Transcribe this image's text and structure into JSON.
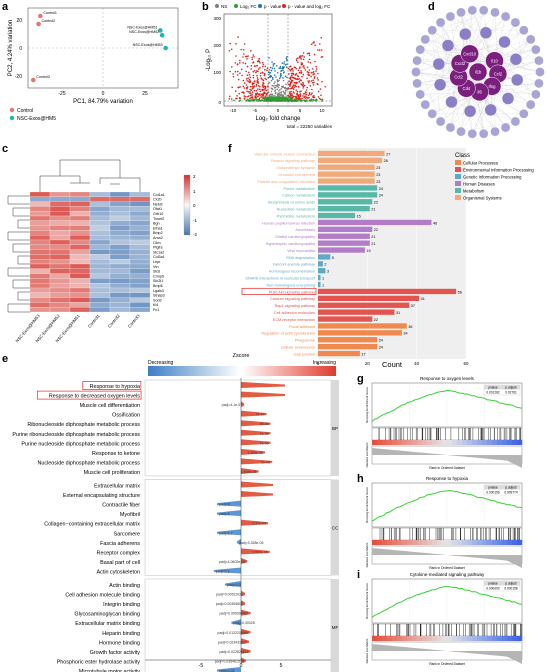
{
  "panels": {
    "a": {
      "letter": "a",
      "xlabel": "PC1, 84.79% variation",
      "ylabel": "PC2, 4.24% variation",
      "xticks": [
        "-25",
        "0",
        "25"
      ],
      "yticks": [
        "20",
        "0",
        "-20"
      ],
      "legend": [
        {
          "label": "Control",
          "color": "#e8776f"
        },
        {
          "label": "NSC-Exos@HM5",
          "color": "#1fb8b0"
        }
      ]
    },
    "b": {
      "letter": "b",
      "legend": [
        "NS",
        "Log₂ FC",
        "p - value",
        "p - value and log₂ FC"
      ],
      "legend_colors": [
        "#7f7f7f",
        "#2ca02c",
        "#1f77b4",
        "#e4201b"
      ],
      "xlabel": "Log₂ fold change",
      "ylabel": "-Log₁₀ P",
      "xticks": [
        "-10",
        "-5",
        "0",
        "5",
        "10"
      ],
      "yticks": [
        "300",
        "200",
        "100",
        "0"
      ],
      "footer": "total = 22250 variables"
    },
    "c": {
      "letter": "c",
      "genes": [
        "Col1a1",
        "Cx2b",
        "Nebl2",
        "Ofat1",
        "Grb10",
        "Tnsef2",
        "Bgn",
        "Efna1",
        "Bmp2",
        "Arxa2",
        "Ckm",
        "Ptgfrs",
        "Slc1a2",
        "Col3a1",
        "Lepr",
        "Vtn",
        "Slc6",
        "Crmp5",
        "Slc2t1",
        "Bmp6",
        "Lgals3",
        "Stnap3",
        "Sod3",
        "Kl4",
        "Fn1"
      ],
      "samples": [
        "NSC-Exos@HM5",
        "NSC-Exos@HM5",
        "NSC-Exos@HM5",
        "Control",
        "Control",
        "Control"
      ],
      "scale": [
        "2",
        "1",
        "0",
        "-1",
        "-2"
      ]
    },
    "d": {
      "letter": "d",
      "hubs": [
        "Il1b",
        "Il10",
        "Ccl2",
        "Ifng",
        "Il6",
        "Cd4",
        "Ccl2",
        "Cxcl2",
        "Cxcl10"
      ]
    },
    "f": {
      "letter": "f",
      "xlabel": "Count",
      "xticks": [
        "0",
        "20",
        "40",
        "60"
      ],
      "legend_title": "Class",
      "classes": [
        {
          "label": "Cellular Processes",
          "color": "#f0894f"
        },
        {
          "label": "Environmental Information Processing",
          "color": "#e3534f"
        },
        {
          "label": "Genetic Information Processing",
          "color": "#5ea8c9"
        },
        {
          "label": "Human Diseases",
          "color": "#b27cc8"
        },
        {
          "label": "Metabolism",
          "color": "#59b7a8"
        },
        {
          "label": "Organismal Systems",
          "color": "#f2a97a"
        }
      ],
      "highlight": "PI3K-Akt signaling pathway"
    },
    "e": {
      "letter": "e",
      "title": "Zscore",
      "decreasing": "Decreasing",
      "increasing": "Increasing",
      "xticks": [
        "-5",
        "0",
        "5"
      ],
      "groups": [
        "BP",
        "CC",
        "MF"
      ]
    },
    "g": {
      "letter": "g",
      "title": "Response to oxygen levels",
      "cols": [
        "pvalue",
        "p.adjust"
      ],
      "vals": [
        "0.001282",
        "0.02761"
      ]
    },
    "h": {
      "letter": "h",
      "title": "Response to hypoxia",
      "cols": [
        "pvalue",
        "p.adjust"
      ],
      "vals": [
        "0.000156",
        "0.009774"
      ]
    },
    "i": {
      "letter": "i",
      "title": "Cytokine-mediated signaling pathway",
      "cols": [
        "pvalue",
        "p.adjust"
      ],
      "vals": [
        "0.000000",
        "0.000158"
      ]
    },
    "gsea_ylabel_top": "Running Enrichment Score",
    "gsea_ylabel_bottom": "Ranked List Metric",
    "gsea_xlabel": "Rank in Ordered Dataset"
  },
  "chart_data": [
    {
      "type": "scatter",
      "panel": "a",
      "xlabel": "PC1, 84.79% variation",
      "ylabel": "PC2, 4.24% variation",
      "xlim": [
        -40,
        45
      ],
      "ylim": [
        -25,
        25
      ],
      "series": [
        {
          "name": "Control",
          "points": [
            [
              -33,
              20
            ],
            [
              -34,
              15
            ],
            [
              -37,
              -20
            ]
          ],
          "labels": [
            "Control1",
            "Control2",
            "Control3"
          ]
        },
        {
          "name": "NSC-Exos@HM5",
          "points": [
            [
              35,
              11
            ],
            [
              36,
              8
            ],
            [
              38,
              0
            ]
          ],
          "labels": [
            "NSC-Exos@HM51",
            "NSC-Exos@HM52",
            "NSC-Exos@HM53"
          ]
        }
      ]
    },
    {
      "type": "bar",
      "panel": "f",
      "xlabel": "Count",
      "categories": [
        "Vascular smooth muscle contraction",
        "Relaxin signaling pathway",
        "Glutamatergic synapse",
        "Circadian entrainment",
        "Platelet and coagulation cascades",
        "Purine metabolism",
        "Carbon metabolism",
        "Biosynthesis of amino acids",
        "Nucleotide metabolism",
        "Pyrimidine metabolism",
        "Human papillomavirus infection",
        "Amoebiasis",
        "Dilated cardiomyopathy",
        "Hypertrophic cardiomyopathy",
        "Viral myocarditis",
        "RNA degradation",
        "Fanconi anemia pathway",
        "Homologous recombination",
        "SNARE interactions in vesicular transport",
        "Non-homologous end-joining",
        "PI3K-Akt signaling pathway",
        "Calcium signaling pathway",
        "Rap1 signaling pathway",
        "Cell adhesion molecules",
        "ECM-receptor interaction",
        "Focal adhesion",
        "Regulation of actin cytoskeleton",
        "Phagosome",
        "Cellular senescence",
        "Gap junction"
      ],
      "values": [
        27,
        26,
        23,
        23,
        23,
        24,
        24,
        22,
        21,
        15,
        46,
        22,
        21,
        21,
        19,
        5,
        2,
        3,
        1,
        1,
        56,
        41,
        37,
        31,
        22,
        36,
        34,
        24,
        24,
        17
      ],
      "classes": [
        "Organismal Systems",
        "Organismal Systems",
        "Organismal Systems",
        "Organismal Systems",
        "Organismal Systems",
        "Metabolism",
        "Metabolism",
        "Metabolism",
        "Metabolism",
        "Metabolism",
        "Human Diseases",
        "Human Diseases",
        "Human Diseases",
        "Human Diseases",
        "Human Diseases",
        "Genetic Information Processing",
        "Genetic Information Processing",
        "Genetic Information Processing",
        "Genetic Information Processing",
        "Genetic Information Processing",
        "Environmental Information Processing",
        "Environmental Information Processing",
        "Environmental Information Processing",
        "Environmental Information Processing",
        "Environmental Information Processing",
        "Cellular Processes",
        "Cellular Processes",
        "Cellular Processes",
        "Cellular Processes",
        "Cellular Processes"
      ],
      "xlim": [
        0,
        60
      ]
    },
    {
      "type": "bar",
      "panel": "e",
      "xlabel": "Zscore",
      "xlim": [
        -8,
        8
      ],
      "terms": [
        {
          "label": "Response to hypoxia",
          "group": "BP",
          "z": 5.5,
          "padj": "",
          "boxed": true
        },
        {
          "label": "Response to decreased oxygen levels",
          "group": "BP",
          "z": 5.5,
          "padj": "",
          "boxed": true
        },
        {
          "label": "Muscle cell differentiation",
          "group": "BP",
          "z": 0.4,
          "padj": "padj=4.1e-07",
          "boxed": false
        },
        {
          "label": "Ossification",
          "group": "BP",
          "z": 3.2,
          "padj": "2e-07",
          "boxed": false
        },
        {
          "label": "Ribonucleoside diphosphate metabolic process",
          "group": "BP",
          "z": 3.7,
          "padj": "3e-06",
          "boxed": false
        },
        {
          "label": "Purine ribonucleoside diphosphate metabolic process",
          "group": "BP",
          "z": 3.7,
          "padj": "7e-06",
          "boxed": false
        },
        {
          "label": "Purine nucleoside diphosphate metabolic process",
          "group": "BP",
          "z": 3.7,
          "padj": "7e-06",
          "boxed": false
        },
        {
          "label": "Response to ketone",
          "group": "BP",
          "z": 3.0,
          "padj": "1.193e-06",
          "boxed": false
        },
        {
          "label": "Nucleoside diphosphate metabolic process",
          "group": "BP",
          "z": 3.9,
          "padj": "2e-06",
          "boxed": false
        },
        {
          "label": "Muscle cell proliferation",
          "group": "BP",
          "z": 2.2,
          "padj": "1.544e-06",
          "boxed": false
        },
        {
          "label": "Extracellular matrix",
          "group": "CC",
          "z": 4.0,
          "padj": "",
          "boxed": false
        },
        {
          "label": "External encapsulating structure",
          "group": "CC",
          "z": 4.0,
          "padj": "",
          "boxed": false
        },
        {
          "label": "Contractile fiber",
          "group": "CC",
          "z": -3.0,
          "padj": "padj=8",
          "boxed": false
        },
        {
          "label": "Myofibril",
          "group": "CC",
          "z": -3.0,
          "padj": "padj=8",
          "boxed": false
        },
        {
          "label": "Collagen−containing extracellular matrix",
          "group": "CC",
          "z": 3.4,
          "padj": "2.37e-05",
          "boxed": false
        },
        {
          "label": "Sarcomere",
          "group": "CC",
          "z": -3.0,
          "padj": "padj=2.7",
          "boxed": false
        },
        {
          "label": "Fascia adherens",
          "group": "CC",
          "z": -0.5,
          "padj": "padj=3.328e-05",
          "boxed": false
        },
        {
          "label": "Receptor complex",
          "group": "CC",
          "z": 3.6,
          "padj": "1.862e-05",
          "boxed": false
        },
        {
          "label": "Basal part of cell",
          "group": "CC",
          "z": 0.8,
          "padj": "padj=4.0602e-05",
          "boxed": false
        },
        {
          "label": "Actin cytoskeleton",
          "group": "CC",
          "z": -3.4,
          "padj": "padj=0.3",
          "boxed": false
        },
        {
          "label": "Actin binding",
          "group": "MF",
          "z": -2.0,
          "padj": "padj=0.0",
          "boxed": false
        },
        {
          "label": "Cell adhesion molecule binding",
          "group": "MF",
          "z": 0.5,
          "padj": "padj=0.00511021",
          "boxed": false
        },
        {
          "label": "Integrin binding",
          "group": "MF",
          "z": 0.5,
          "padj": "padj=0.00306801",
          "boxed": false
        },
        {
          "label": "Glycosaminoglycan binding",
          "group": "MF",
          "z": 1.2,
          "padj": "padj=0.005398461",
          "boxed": false
        },
        {
          "label": "Extracellular matrix binding",
          "group": "MF",
          "z": -1.2,
          "padj": "padj=0.00028",
          "boxed": false
        },
        {
          "label": "Heparin binding",
          "group": "MF",
          "z": 1.2,
          "padj": "padj=0.0132208864",
          "boxed": false
        },
        {
          "label": "Hormone binding",
          "group": "MF",
          "z": 1.0,
          "padj": "padj=0.023432227",
          "boxed": false
        },
        {
          "label": "Growth factor activity",
          "group": "MF",
          "z": 1.2,
          "padj": "padj=0.022825616",
          "boxed": false
        },
        {
          "label": "Phosphoric ester hydrolase activity",
          "group": "MF",
          "z": 0.6,
          "padj": "padj=0.035461599",
          "boxed": false
        },
        {
          "label": "Microtubule motor activity",
          "group": "MF",
          "z": -3.0,
          "padj": "padj=0.03",
          "boxed": false
        }
      ]
    }
  ]
}
